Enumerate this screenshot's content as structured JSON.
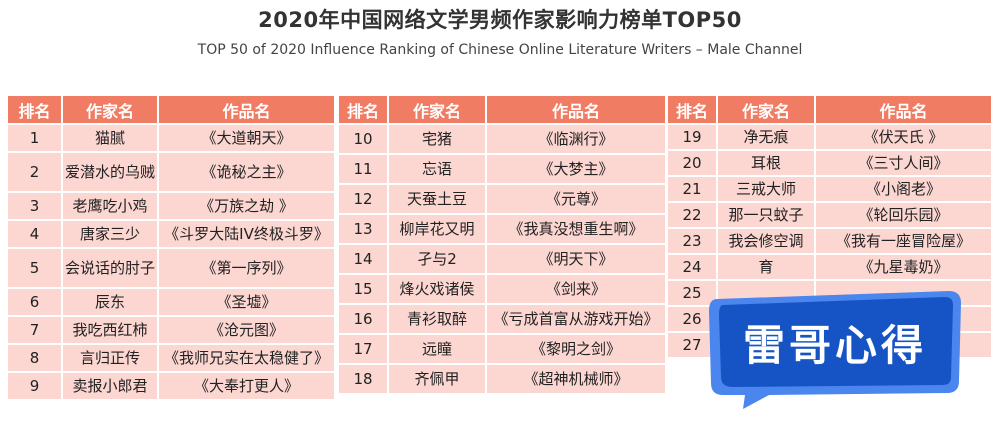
{
  "header": {
    "title": "2020年中国网络文学男频作家影响力榜单TOP50",
    "subtitle": "TOP 50 of 2020 Influence Ranking of Chinese Online Literature Writers – Male Channel"
  },
  "columns": {
    "rank": "排名",
    "author": "作家名",
    "work": "作品名"
  },
  "table1": [
    {
      "rank": "1",
      "author": "猫腻",
      "work": "《大道朝天》"
    },
    {
      "rank": "2",
      "author": "爱潜水的乌贼",
      "work": "《诡秘之主》"
    },
    {
      "rank": "3",
      "author": "老鹰吃小鸡",
      "work": "《万族之劫 》"
    },
    {
      "rank": "4",
      "author": "唐家三少",
      "work": "《斗罗大陆IV终极斗罗》"
    },
    {
      "rank": "5",
      "author": "会说话的肘子",
      "work": "《第一序列》"
    },
    {
      "rank": "6",
      "author": "辰东",
      "work": "《圣墟》"
    },
    {
      "rank": "7",
      "author": "我吃西红柿",
      "work": "《沧元图》"
    },
    {
      "rank": "8",
      "author": "言归正传",
      "work": "《我师兄实在太稳健了》"
    },
    {
      "rank": "9",
      "author": "卖报小郎君",
      "work": "《大奉打更人》"
    }
  ],
  "table2": [
    {
      "rank": "10",
      "author": "宅猪",
      "work": "《临渊行》"
    },
    {
      "rank": "11",
      "author": "忘语",
      "work": "《大梦主》"
    },
    {
      "rank": "12",
      "author": "天蚕土豆",
      "work": "《元尊》"
    },
    {
      "rank": "13",
      "author": "柳岸花又明",
      "work": "《我真没想重生啊》"
    },
    {
      "rank": "14",
      "author": "孑与2",
      "work": "《明天下》"
    },
    {
      "rank": "15",
      "author": "烽火戏诸侯",
      "work": "《剑来》"
    },
    {
      "rank": "16",
      "author": "青衫取醉",
      "work": "《亏成首富从游戏开始》"
    },
    {
      "rank": "17",
      "author": "远瞳",
      "work": "《黎明之剑》"
    },
    {
      "rank": "18",
      "author": "齐佩甲",
      "work": "《超神机械师》"
    }
  ],
  "table3": [
    {
      "rank": "19",
      "author": "净无痕",
      "work": "《伏天氏 》"
    },
    {
      "rank": "20",
      "author": "耳根",
      "work": "《三寸人间》"
    },
    {
      "rank": "21",
      "author": "三戒大师",
      "work": "《小阁老》"
    },
    {
      "rank": "22",
      "author": "那一只蚊子",
      "work": "《轮回乐园》"
    },
    {
      "rank": "23",
      "author": "我会修空调",
      "work": "《我有一座冒险屋》"
    },
    {
      "rank": "24",
      "author": "育",
      "work": "《九星毒奶》"
    },
    {
      "rank": "25",
      "author": "",
      "work": ""
    },
    {
      "rank": "26",
      "author": "",
      "work": ""
    },
    {
      "rank": "27",
      "author": "",
      "work": ""
    }
  ],
  "watermark": {
    "text": "雷哥心得",
    "color": "#1556c8",
    "border": "#5a8ff0"
  }
}
